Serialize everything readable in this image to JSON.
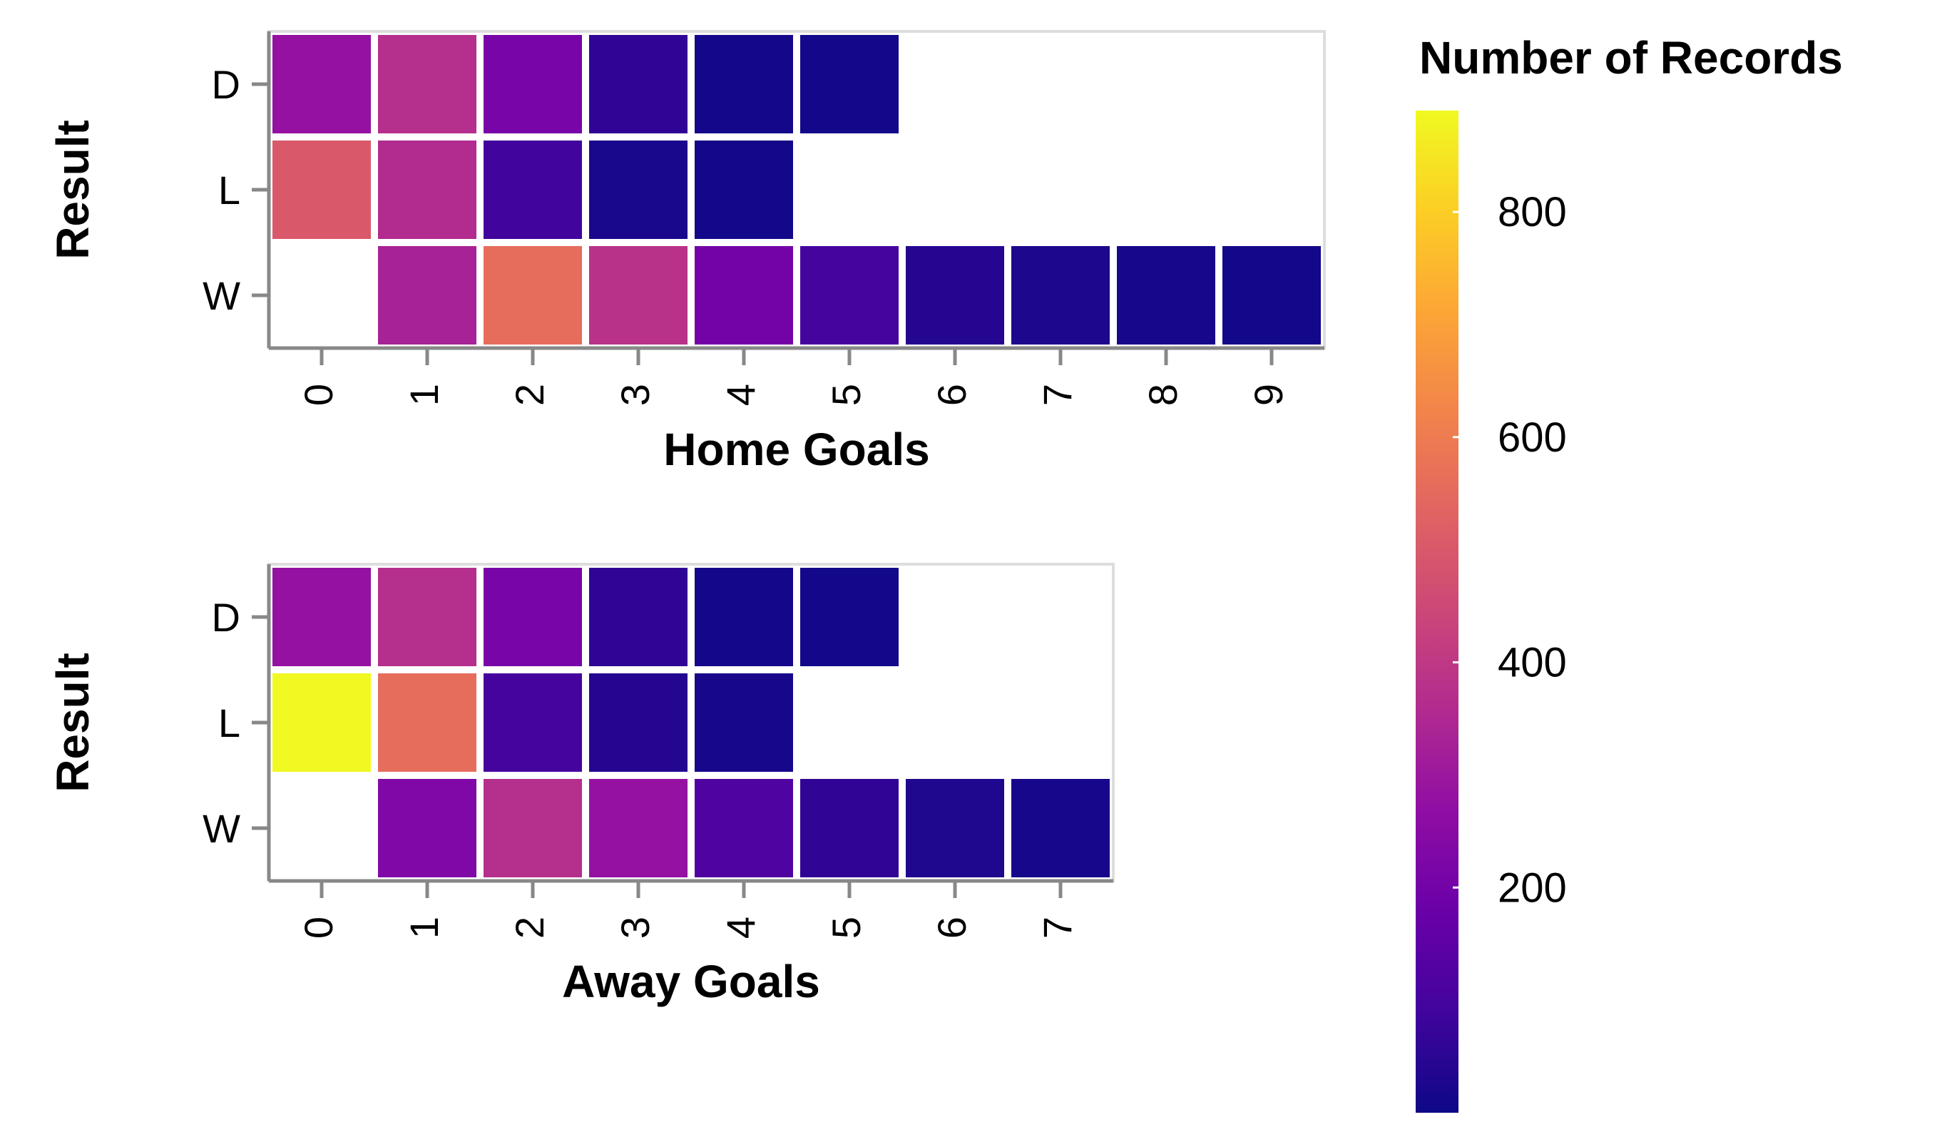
{
  "chart_data": [
    {
      "type": "heatmap",
      "xlabel": "Home Goals",
      "ylabel": "Result",
      "x_categories": [
        "0",
        "1",
        "2",
        "3",
        "4",
        "5",
        "6",
        "7",
        "8",
        "9"
      ],
      "y_categories": [
        "D",
        "L",
        "W"
      ],
      "cells": [
        {
          "y": "D",
          "x": "0",
          "value": 280
        },
        {
          "y": "D",
          "x": "1",
          "value": 370
        },
        {
          "y": "D",
          "x": "2",
          "value": 210
        },
        {
          "y": "D",
          "x": "3",
          "value": 60
        },
        {
          "y": "D",
          "x": "4",
          "value": 12
        },
        {
          "y": "D",
          "x": "5",
          "value": 8
        },
        {
          "y": "L",
          "x": "0",
          "value": 500
        },
        {
          "y": "L",
          "x": "1",
          "value": 360
        },
        {
          "y": "L",
          "x": "2",
          "value": 90
        },
        {
          "y": "L",
          "x": "3",
          "value": 20
        },
        {
          "y": "L",
          "x": "4",
          "value": 10
        },
        {
          "y": "W",
          "x": "1",
          "value": 330
        },
        {
          "y": "W",
          "x": "2",
          "value": 560
        },
        {
          "y": "W",
          "x": "3",
          "value": 380
        },
        {
          "y": "W",
          "x": "4",
          "value": 200
        },
        {
          "y": "W",
          "x": "5",
          "value": 100
        },
        {
          "y": "W",
          "x": "6",
          "value": 40
        },
        {
          "y": "W",
          "x": "7",
          "value": 25
        },
        {
          "y": "W",
          "x": "8",
          "value": 15
        },
        {
          "y": "W",
          "x": "9",
          "value": 10
        }
      ]
    },
    {
      "type": "heatmap",
      "xlabel": "Away Goals",
      "ylabel": "Result",
      "x_categories": [
        "0",
        "1",
        "2",
        "3",
        "4",
        "5",
        "6",
        "7"
      ],
      "y_categories": [
        "D",
        "L",
        "W"
      ],
      "cells": [
        {
          "y": "D",
          "x": "0",
          "value": 280
        },
        {
          "y": "D",
          "x": "1",
          "value": 370
        },
        {
          "y": "D",
          "x": "2",
          "value": 210
        },
        {
          "y": "D",
          "x": "3",
          "value": 60
        },
        {
          "y": "D",
          "x": "4",
          "value": 12
        },
        {
          "y": "D",
          "x": "5",
          "value": 8
        },
        {
          "y": "L",
          "x": "0",
          "value": 890
        },
        {
          "y": "L",
          "x": "1",
          "value": 560
        },
        {
          "y": "L",
          "x": "2",
          "value": 100
        },
        {
          "y": "L",
          "x": "3",
          "value": 40
        },
        {
          "y": "L",
          "x": "4",
          "value": 15
        },
        {
          "y": "W",
          "x": "1",
          "value": 230
        },
        {
          "y": "W",
          "x": "2",
          "value": 370
        },
        {
          "y": "W",
          "x": "3",
          "value": 280
        },
        {
          "y": "W",
          "x": "4",
          "value": 120
        },
        {
          "y": "W",
          "x": "5",
          "value": 60
        },
        {
          "y": "W",
          "x": "6",
          "value": 30
        },
        {
          "y": "W",
          "x": "7",
          "value": 15
        }
      ]
    }
  ],
  "legend": {
    "title": "Number of Records",
    "domain": [
      0,
      890
    ],
    "ticks": [
      200,
      400,
      600,
      800
    ],
    "colormap": "plasma",
    "stops": [
      "#0d0887",
      "#41049d",
      "#6a00a8",
      "#8f0da4",
      "#b12a90",
      "#cc4778",
      "#e16462",
      "#f2844b",
      "#fca636",
      "#fcce25",
      "#f0f921"
    ]
  }
}
